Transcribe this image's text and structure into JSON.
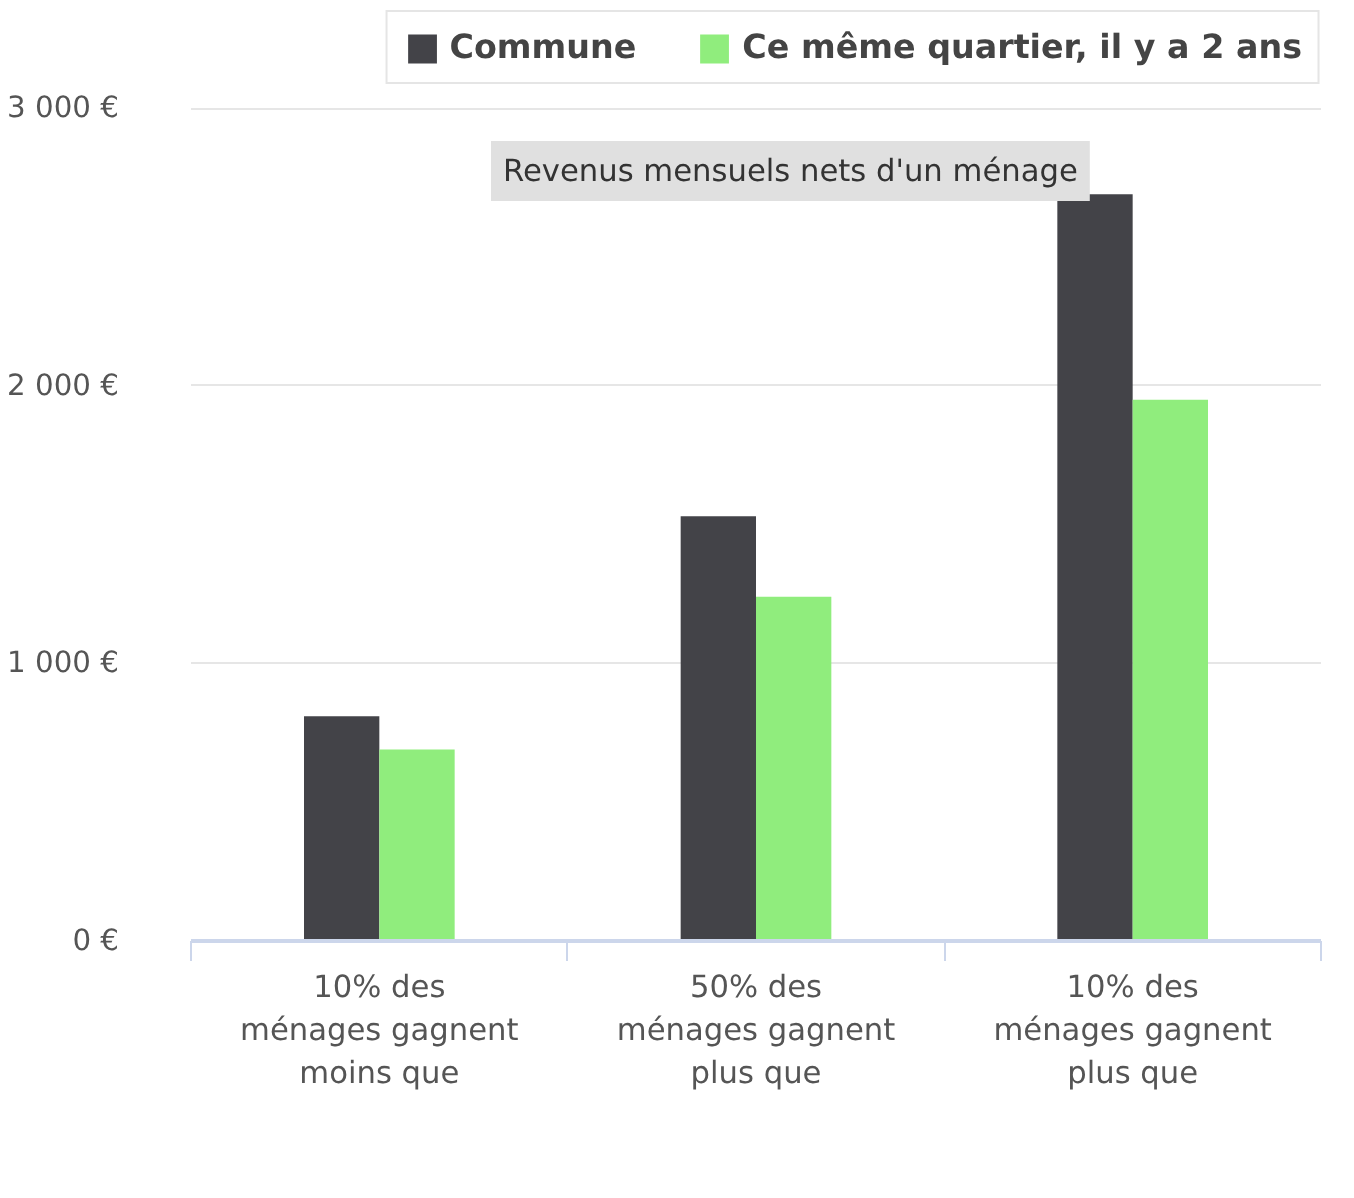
{
  "chart_data": {
    "type": "bar",
    "categories": [
      "10% des\nménages gagnent\nmoins que",
      "50% des\nménages gagnent\nplus que",
      "10% des\nménages gagnent\nplus que"
    ],
    "series": [
      {
        "name": "Commune",
        "color": "#434348",
        "values": [
          810,
          1530,
          2690
        ]
      },
      {
        "name": "Ce même quartier, il y a 2 ans",
        "color": "#90ed7d",
        "values": [
          690,
          1240,
          1950
        ]
      }
    ],
    "ylim": [
      0,
      3350
    ],
    "yticks": [
      {
        "value": 0,
        "label": "0 €"
      },
      {
        "value": 1000,
        "label": "1 000 €"
      },
      {
        "value": 2000,
        "label": "2 000 €"
      },
      {
        "value": 3000,
        "label": "3 000 €"
      }
    ],
    "grid": "y",
    "legend": "top right",
    "annotations": [
      "Revenus mensuels nets d'un ménage"
    ]
  }
}
